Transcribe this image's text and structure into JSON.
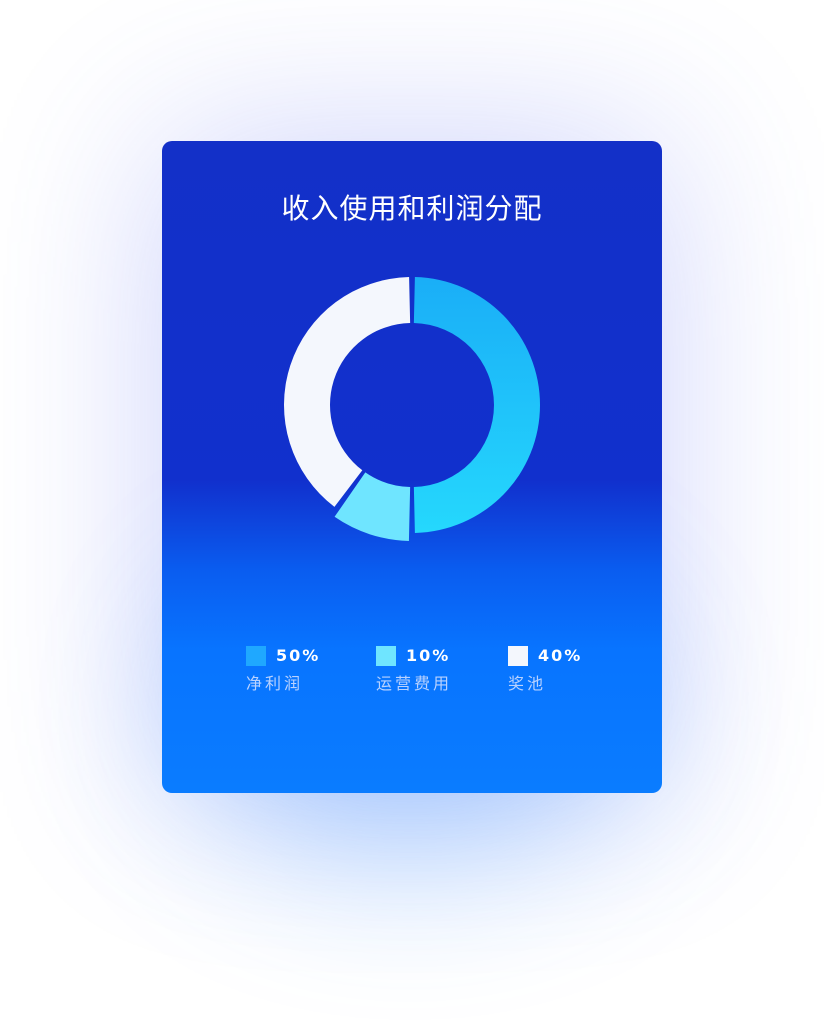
{
  "chart_data": {
    "type": "pie",
    "title": "收入使用和利润分配",
    "slices": [
      {
        "label": "净利润",
        "value": 50,
        "display": "50%",
        "color": "#25d8fd",
        "color_start": "#1aaef7"
      },
      {
        "label": "运营费用",
        "value": 10,
        "display": "10%",
        "color": "#6fe5ff"
      },
      {
        "label": "奖池",
        "value": 40,
        "display": "40%",
        "color": "#f4f7fd"
      }
    ],
    "legend_position": "bottom"
  },
  "colors": {
    "card_top": "#1130cd",
    "card_bottom": "#0a7cff"
  }
}
